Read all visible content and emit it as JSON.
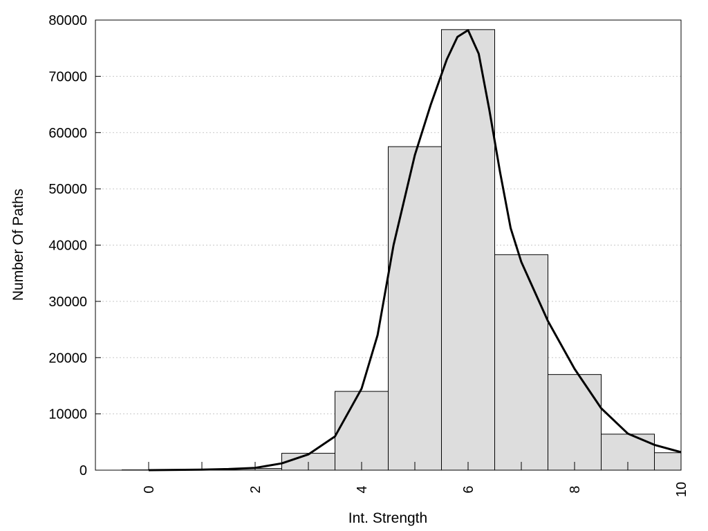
{
  "chart_data": {
    "type": "bar",
    "title": "",
    "xlabel": "Int. Strength",
    "ylabel": "Number Of Paths",
    "xlim": [
      -1,
      10
    ],
    "ylim": [
      0,
      80000
    ],
    "x_ticks": [
      0,
      2,
      4,
      6,
      8,
      10
    ],
    "y_ticks": [
      0,
      10000,
      20000,
      30000,
      40000,
      50000,
      60000,
      70000,
      80000
    ],
    "grid": "horizontal dotted",
    "bin_width": 1,
    "bins": [
      {
        "center": 0,
        "value": 50
      },
      {
        "center": 1,
        "value": 100
      },
      {
        "center": 2,
        "value": 300
      },
      {
        "center": 3,
        "value": 3000
      },
      {
        "center": 4,
        "value": 14000
      },
      {
        "center": 5,
        "value": 57500
      },
      {
        "center": 6,
        "value": 78300
      },
      {
        "center": 7,
        "value": 38300
      },
      {
        "center": 8,
        "value": 17000
      },
      {
        "center": 9,
        "value": 6400
      },
      {
        "center": 10,
        "value": 3100
      }
    ],
    "density_curve": {
      "x": [
        0,
        0.5,
        1,
        1.5,
        2,
        2.5,
        3,
        3.5,
        4,
        4.3,
        4.6,
        5,
        5.3,
        5.6,
        5.8,
        6,
        6.2,
        6.4,
        6.6,
        6.8,
        7,
        7.5,
        8,
        8.5,
        9,
        9.5,
        10
      ],
      "y": [
        0,
        50,
        100,
        200,
        400,
        1200,
        2800,
        6000,
        14500,
        24000,
        40000,
        56000,
        65000,
        73000,
        77000,
        78200,
        74000,
        64000,
        53000,
        43000,
        37000,
        26500,
        18000,
        11000,
        6500,
        4500,
        3200
      ]
    },
    "colors": {
      "bar_fill": "#dddddd",
      "bar_edge": "#000000",
      "curve": "#000000"
    }
  }
}
